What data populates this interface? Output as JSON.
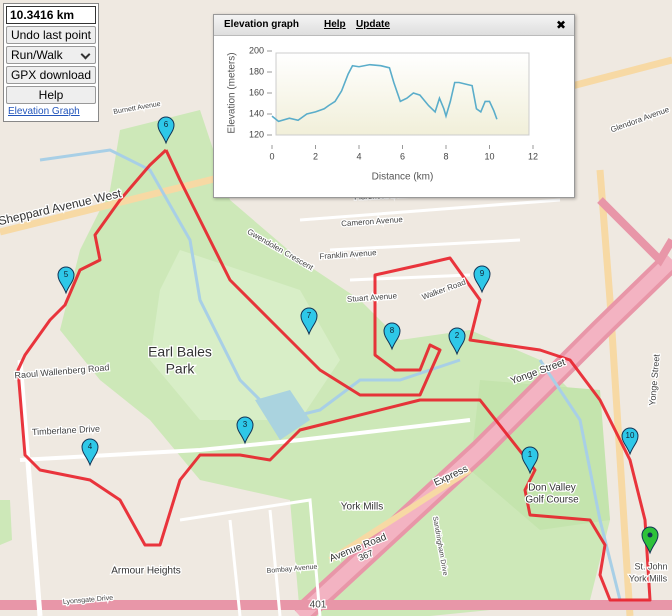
{
  "controls": {
    "distance": "10.3416 km",
    "buttons": [
      "Undo last point",
      "Run/Walk",
      "GPX download",
      "Help"
    ],
    "link": "Elevation Graph"
  },
  "elevation_panel": {
    "title": "Elevation graph",
    "links": [
      "Help",
      "Update"
    ],
    "close": "✖",
    "chart_data": {
      "type": "line",
      "xlabel": "Distance (km)",
      "ylabel": "Elevation (meters)",
      "xlim": [
        0,
        12
      ],
      "xticks": [
        0,
        2,
        4,
        6,
        8,
        10,
        12
      ],
      "ylim": [
        120,
        200
      ],
      "yticks": [
        120,
        140,
        160,
        180,
        200
      ],
      "color": "#5aadca",
      "x": [
        0,
        0.3,
        0.8,
        1.2,
        1.6,
        2.0,
        2.4,
        2.6,
        2.9,
        3.2,
        3.5,
        3.7,
        4.0,
        4.5,
        5.0,
        5.4,
        5.6,
        5.9,
        6.2,
        6.5,
        6.8,
        7.2,
        7.5,
        7.7,
        7.9,
        8.0,
        8.2,
        8.4,
        8.6,
        9.0,
        9.2,
        9.4,
        9.6,
        9.8,
        10.0,
        10.2,
        10.34
      ],
      "values": [
        138,
        133,
        136,
        134,
        140,
        142,
        145,
        148,
        152,
        162,
        178,
        186,
        185,
        187,
        186,
        184,
        170,
        152,
        155,
        160,
        158,
        148,
        142,
        155,
        145,
        138,
        152,
        170,
        170,
        168,
        167,
        145,
        142,
        152,
        152,
        143,
        135
      ]
    }
  },
  "markers": [
    "1",
    "2",
    "3",
    "4",
    "5",
    "6",
    "7",
    "8",
    "9",
    "10"
  ],
  "map_labels": [
    "Sheppard Avenue West",
    "Earl Bales",
    "Park",
    "Raoul Wallenberg Road",
    "Timberlane Drive",
    "York Mills",
    "Avenue Road",
    "367",
    "Yonge Street",
    "Express",
    "Don Valley",
    "Golf Course",
    "Armour Heights",
    "Florence Avenue",
    "Cameron Avenue",
    "Franklin Avenue",
    "Stuart Avenue",
    "Walker Road",
    "Gwendolen Crescent",
    "Sandringham Drive",
    "Bombay Avenue",
    "Lyonsgate Drive",
    "401",
    "St. John",
    "York Mills",
    "Burnett Avenue",
    "Yonge Street",
    "Glendora Avenue"
  ]
}
